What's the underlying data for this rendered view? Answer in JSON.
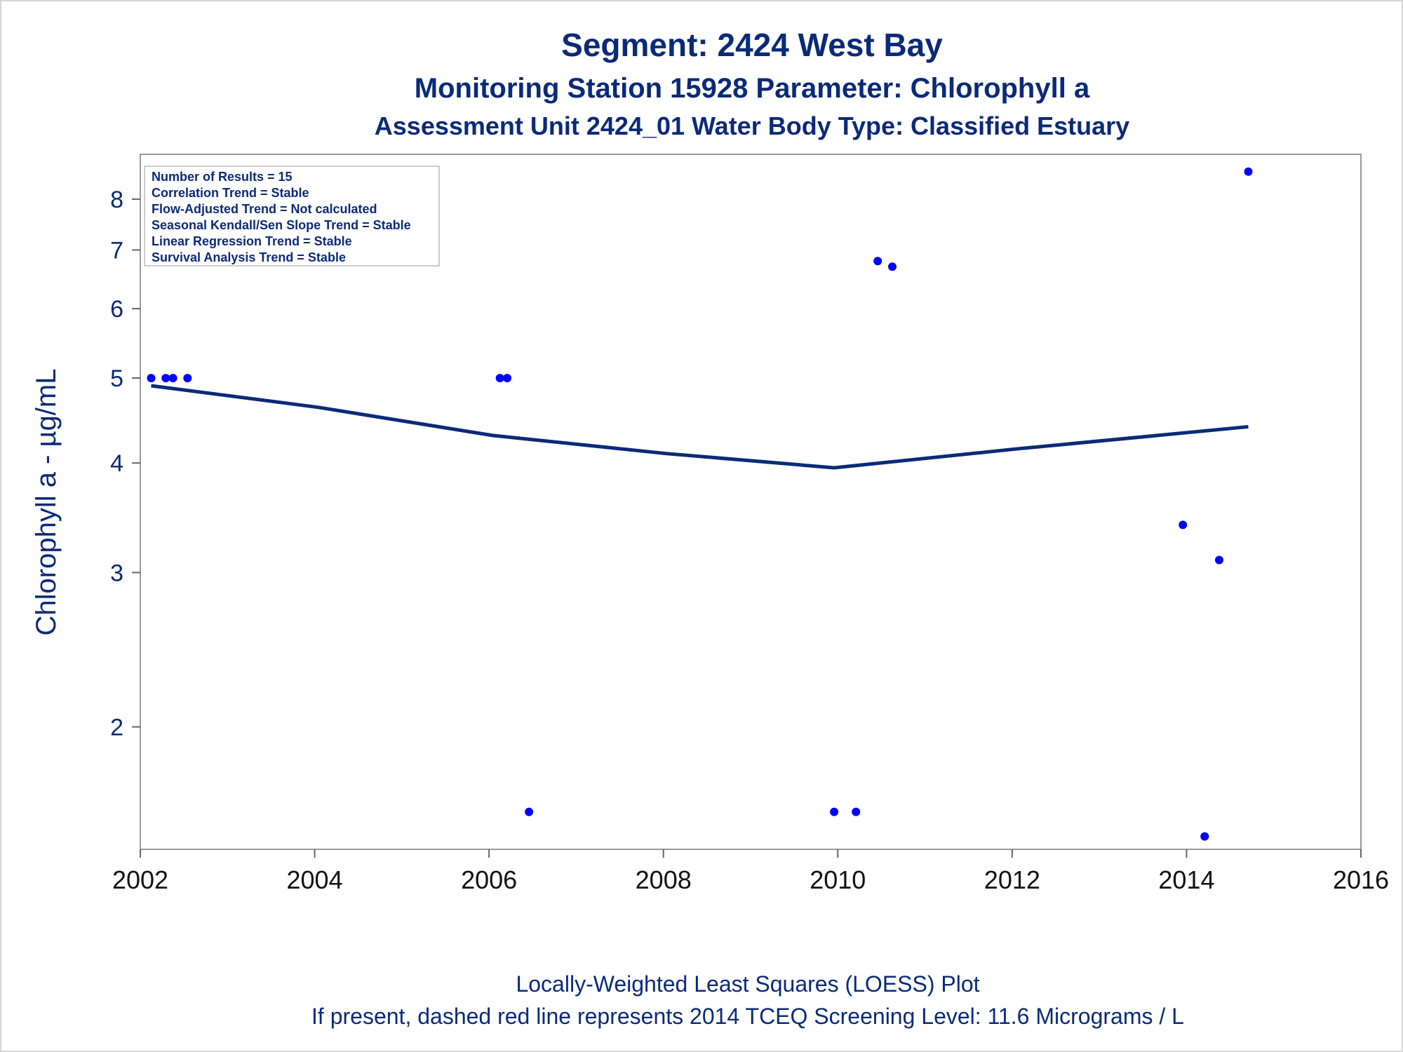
{
  "chart_data": {
    "type": "scatter",
    "title": "Segment: 2424  West Bay",
    "subtitle": "Monitoring Station 15928 Parameter: Chlorophyll a",
    "subtitle2": "Assessment Unit 2424_01   Water Body Type: Classified Estuary",
    "xlabel": "",
    "ylabel": "Chlorophyll a -  µg/mL",
    "yscale": "log",
    "xlim": [
      2002,
      2016
    ],
    "ylim": [
      1.45,
      9.0
    ],
    "x_ticks": [
      2002,
      2004,
      2006,
      2008,
      2010,
      2012,
      2014,
      2016
    ],
    "x_tick_labels": [
      "2002",
      "2004",
      "2006",
      "2008",
      "2010",
      "2012",
      "2014",
      "2016"
    ],
    "y_ticks": [
      2,
      3,
      4,
      5,
      6,
      7,
      8
    ],
    "y_tick_labels": [
      "2",
      "3",
      "4",
      "5",
      "6",
      "7",
      "8"
    ],
    "grid": false,
    "legend": "top-left",
    "stats_box": [
      "Number of Results = 15",
      "Correlation Trend = Stable",
      "Flow-Adjusted Trend = Not calculated",
      "Seasonal Kendall/Sen Slope Trend = Stable",
      "Linear Regression Trend = Stable",
      "Survival Analysis Trend = Stable"
    ],
    "series": [
      {
        "type": "scatter",
        "color": "#0000ff",
        "points": [
          {
            "x": "2002-02",
            "y": 5.0
          },
          {
            "x": "2002-04",
            "y": 5.0
          },
          {
            "x": "2002-05",
            "y": 5.0
          },
          {
            "x": "2002-07",
            "y": 5.0
          },
          {
            "x": "2006-02",
            "y": 5.0
          },
          {
            "x": "2006-03",
            "y": 5.0
          },
          {
            "x": "2006-06",
            "y": 1.6
          },
          {
            "x": "2009-12",
            "y": 1.6
          },
          {
            "x": "2010-03",
            "y": 1.6
          },
          {
            "x": "2010-06",
            "y": 6.8
          },
          {
            "x": "2010-08",
            "y": 6.7
          },
          {
            "x": "2013-12",
            "y": 3.4
          },
          {
            "x": "2014-03",
            "y": 1.5
          },
          {
            "x": "2014-05",
            "y": 3.1
          },
          {
            "x": "2014-09",
            "y": 8.6
          }
        ]
      },
      {
        "type": "line",
        "color": "#0b2a78",
        "points": [
          {
            "x": "2002-02",
            "y": 4.9
          },
          {
            "x": "2004-01",
            "y": 4.63
          },
          {
            "x": "2006-01",
            "y": 4.3
          },
          {
            "x": "2008-01",
            "y": 4.1
          },
          {
            "x": "2009-12",
            "y": 3.95
          },
          {
            "x": "2012-01",
            "y": 4.15
          },
          {
            "x": "2014-09",
            "y": 4.4
          }
        ]
      }
    ],
    "footnote1": "Locally-Weighted Least Squares (LOESS) Plot",
    "footnote2": "If present, dashed red line represents 2014 TCEQ Screening Level: 11.6 Micrograms / L"
  }
}
